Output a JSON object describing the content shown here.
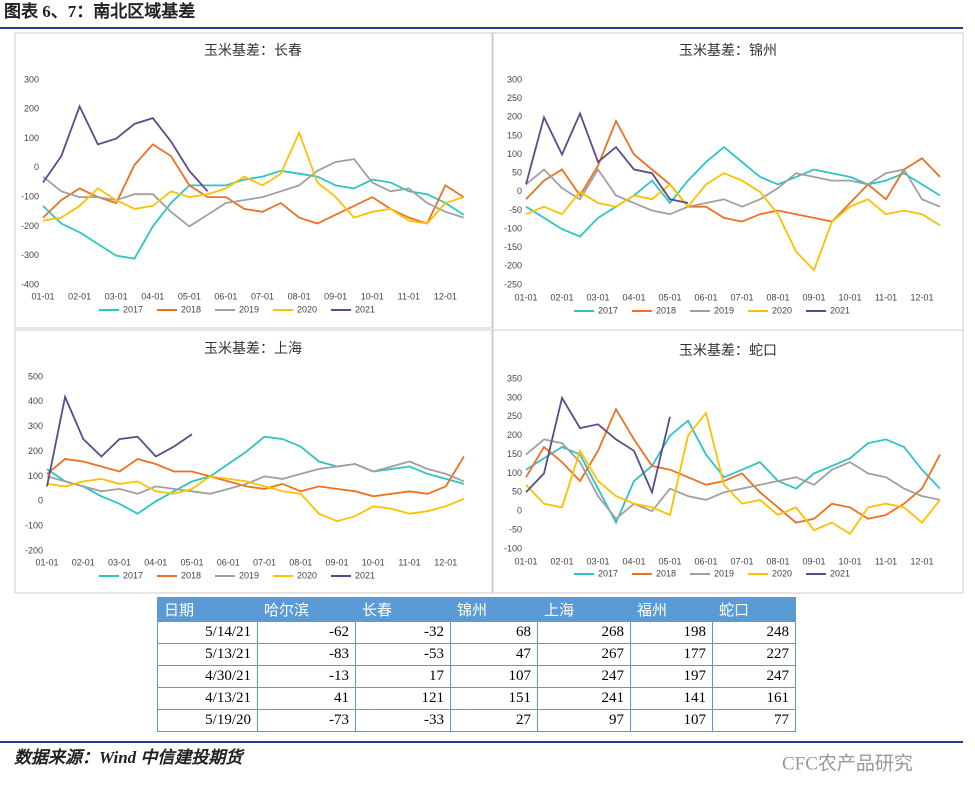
{
  "header": {
    "title": "图表 6、7：南北区域基差"
  },
  "chart_data": [
    {
      "type": "line",
      "title": "玉米基差：长春",
      "categories": [
        "01-01",
        null,
        "02-01",
        null,
        "03-01",
        null,
        "04-01",
        null,
        "05-01",
        null,
        "06-01",
        null,
        "07-01",
        null,
        "08-01",
        null,
        "09-01",
        null,
        "10-01",
        null,
        "11-01",
        null,
        "12-01",
        null
      ],
      "ylim": [
        -400,
        300
      ],
      "yticks": [
        -400,
        -300,
        -200,
        -100,
        0,
        100,
        200,
        300
      ],
      "grid": false,
      "series": [
        {
          "name": "2017",
          "color": "#2ec4c4",
          "values": [
            -130,
            -190,
            -220,
            -260,
            -300,
            -310,
            -200,
            -120,
            -60,
            -60,
            -60,
            -40,
            -30,
            -10,
            -20,
            -30,
            -60,
            -70,
            -40,
            -50,
            -80,
            -90,
            -120,
            -160
          ]
        },
        {
          "name": "2018",
          "color": "#f07020",
          "values": [
            -170,
            -110,
            -70,
            -100,
            -120,
            10,
            80,
            40,
            -60,
            -100,
            -100,
            -140,
            -150,
            -120,
            -170,
            -190,
            -160,
            -130,
            -100,
            -140,
            -170,
            -190,
            -60,
            -100
          ]
        },
        {
          "name": "2019",
          "color": "#a0a0a0",
          "values": [
            -30,
            -80,
            -100,
            -100,
            -110,
            -90,
            -90,
            -150,
            -200,
            -160,
            -120,
            -110,
            -100,
            -80,
            -60,
            -10,
            20,
            30,
            -50,
            -80,
            -70,
            -120,
            -150,
            -170
          ]
        },
        {
          "name": "2020",
          "color": "#ffc000",
          "values": [
            -180,
            -170,
            -130,
            -70,
            -110,
            -140,
            -130,
            -80,
            -100,
            -90,
            -70,
            -30,
            -60,
            -20,
            120,
            -50,
            -100,
            -170,
            -150,
            -140,
            -180,
            -190,
            -120,
            -100
          ]
        },
        {
          "name": "2021",
          "color": "#5b4a8f",
          "values": [
            -50,
            40,
            210,
            80,
            100,
            150,
            170,
            90,
            -10,
            -80,
            null,
            null,
            null,
            null,
            null,
            null,
            null,
            null,
            null,
            null,
            null,
            null,
            null,
            null
          ]
        }
      ]
    },
    {
      "type": "line",
      "title": "玉米基差：锦州",
      "categories": [
        "01-01",
        null,
        "02-01",
        null,
        "03-01",
        null,
        "04-01",
        null,
        "05-01",
        null,
        "06-01",
        null,
        "07-01",
        null,
        "08-01",
        null,
        "09-01",
        null,
        "10-01",
        null,
        "11-01",
        null,
        "12-01",
        null
      ],
      "ylim": [
        -250,
        300
      ],
      "yticks": [
        -250,
        -200,
        -150,
        -100,
        -50,
        0,
        50,
        100,
        150,
        200,
        250,
        300
      ],
      "grid": false,
      "series": [
        {
          "name": "2017",
          "color": "#2ec4c4",
          "values": [
            -40,
            -70,
            -100,
            -120,
            -70,
            -40,
            -10,
            30,
            -30,
            30,
            80,
            120,
            80,
            40,
            20,
            40,
            60,
            50,
            40,
            20,
            30,
            50,
            20,
            -10
          ]
        },
        {
          "name": "2018",
          "color": "#f07020",
          "values": [
            -20,
            30,
            60,
            -10,
            70,
            190,
            100,
            60,
            20,
            -40,
            -40,
            -70,
            -80,
            -60,
            -50,
            -60,
            -70,
            -80,
            -30,
            20,
            -20,
            60,
            90,
            40
          ]
        },
        {
          "name": "2019",
          "color": "#a0a0a0",
          "values": [
            20,
            60,
            10,
            -20,
            60,
            -10,
            -30,
            -50,
            -60,
            -40,
            -30,
            -20,
            -40,
            -20,
            10,
            50,
            40,
            30,
            30,
            20,
            50,
            60,
            -20,
            -40
          ]
        },
        {
          "name": "2020",
          "color": "#ffc000",
          "values": [
            -60,
            -40,
            -60,
            0,
            -30,
            -40,
            -10,
            -20,
            20,
            -40,
            20,
            50,
            30,
            0,
            -60,
            -160,
            -210,
            -80,
            -40,
            -20,
            -60,
            -50,
            -60,
            -90
          ]
        },
        {
          "name": "2021",
          "color": "#5b4a8f",
          "values": [
            20,
            200,
            100,
            210,
            80,
            120,
            60,
            50,
            -20,
            -30,
            null,
            null,
            null,
            null,
            null,
            null,
            null,
            null,
            null,
            null,
            null,
            null,
            null,
            null
          ]
        }
      ]
    },
    {
      "type": "line",
      "title": "玉米基差：上海",
      "categories": [
        "01-01",
        null,
        "02-01",
        null,
        "03-01",
        null,
        "04-01",
        null,
        "05-01",
        null,
        "06-01",
        null,
        "07-01",
        null,
        "08-01",
        null,
        "09-01",
        null,
        "10-01",
        null,
        "11-01",
        null,
        "12-01",
        null
      ],
      "ylim": [
        -200,
        500
      ],
      "yticks": [
        -200,
        -100,
        0,
        100,
        200,
        300,
        400,
        500
      ],
      "grid": false,
      "series": [
        {
          "name": "2017",
          "color": "#2ec4c4",
          "values": [
            130,
            80,
            60,
            20,
            -10,
            -50,
            0,
            40,
            80,
            100,
            150,
            200,
            260,
            250,
            220,
            160,
            140,
            150,
            120,
            130,
            140,
            110,
            90,
            70
          ]
        },
        {
          "name": "2018",
          "color": "#f07020",
          "values": [
            110,
            170,
            160,
            140,
            120,
            170,
            150,
            120,
            120,
            100,
            80,
            60,
            50,
            70,
            40,
            60,
            50,
            40,
            20,
            30,
            40,
            30,
            60,
            180
          ]
        },
        {
          "name": "2019",
          "color": "#a0a0a0",
          "values": [
            100,
            80,
            60,
            40,
            50,
            30,
            60,
            50,
            40,
            30,
            50,
            70,
            100,
            90,
            110,
            130,
            140,
            150,
            120,
            140,
            160,
            130,
            110,
            80
          ]
        },
        {
          "name": "2020",
          "color": "#ffc000",
          "values": [
            70,
            60,
            80,
            90,
            70,
            80,
            40,
            30,
            50,
            100,
            90,
            80,
            60,
            40,
            30,
            -50,
            -80,
            -60,
            -20,
            -30,
            -50,
            -40,
            -20,
            10
          ]
        },
        {
          "name": "2021",
          "color": "#5b4a8f",
          "values": [
            60,
            420,
            250,
            180,
            250,
            260,
            180,
            220,
            270,
            null,
            null,
            null,
            null,
            null,
            null,
            null,
            null,
            null,
            null,
            null,
            null,
            null,
            null,
            null
          ]
        }
      ]
    },
    {
      "type": "line",
      "title": "玉米基差：蛇口",
      "categories": [
        "01-01",
        null,
        "02-01",
        null,
        "03-01",
        null,
        "04-01",
        null,
        "05-01",
        null,
        "06-01",
        null,
        "07-01",
        null,
        "08-01",
        null,
        "09-01",
        null,
        "10-01",
        null,
        "11-01",
        null,
        "12-01",
        null
      ],
      "ylim": [
        -100,
        350
      ],
      "yticks": [
        -100,
        -50,
        0,
        50,
        100,
        150,
        200,
        250,
        300,
        350
      ],
      "grid": false,
      "series": [
        {
          "name": "2017",
          "color": "#2ec4c4",
          "values": [
            110,
            140,
            170,
            150,
            60,
            -30,
            80,
            120,
            200,
            240,
            150,
            90,
            110,
            130,
            80,
            60,
            100,
            120,
            140,
            180,
            190,
            170,
            110,
            60
          ]
        },
        {
          "name": "2018",
          "color": "#f07020",
          "values": [
            90,
            170,
            130,
            80,
            160,
            270,
            190,
            120,
            110,
            90,
            70,
            80,
            100,
            50,
            10,
            -30,
            -20,
            20,
            10,
            -20,
            -10,
            20,
            60,
            150
          ]
        },
        {
          "name": "2019",
          "color": "#a0a0a0",
          "values": [
            150,
            190,
            180,
            130,
            40,
            -20,
            20,
            0,
            60,
            40,
            30,
            50,
            60,
            70,
            80,
            90,
            70,
            110,
            130,
            100,
            90,
            60,
            40,
            30
          ]
        },
        {
          "name": "2020",
          "color": "#ffc000",
          "values": [
            70,
            20,
            10,
            160,
            80,
            40,
            20,
            10,
            -10,
            200,
            260,
            70,
            20,
            30,
            -10,
            10,
            -50,
            -30,
            -60,
            10,
            20,
            10,
            -30,
            30
          ]
        },
        {
          "name": "2021",
          "color": "#5b4a8f",
          "values": [
            50,
            100,
            300,
            220,
            230,
            190,
            160,
            50,
            250,
            null,
            null,
            null,
            null,
            null,
            null,
            null,
            null,
            null,
            null,
            null,
            null,
            null,
            null,
            null
          ]
        }
      ]
    }
  ],
  "table": {
    "columns": [
      "日期",
      "哈尔滨",
      "长春",
      "锦州",
      "上海",
      "福州",
      "蛇口"
    ],
    "rows": [
      [
        "5/14/21",
        "-62",
        "-32",
        "68",
        "268",
        "198",
        "248"
      ],
      [
        "5/13/21",
        "-83",
        "-53",
        "47",
        "267",
        "177",
        "227"
      ],
      [
        "4/30/21",
        "-13",
        "17",
        "107",
        "247",
        "197",
        "247"
      ],
      [
        "4/13/21",
        "41",
        "121",
        "151",
        "241",
        "141",
        "161"
      ],
      [
        "5/19/20",
        "-73",
        "-33",
        "27",
        "97",
        "107",
        "77"
      ]
    ]
  },
  "footer": {
    "source": "数据来源：Wind 中信建投期货",
    "watermark": "CFC农产品研究"
  }
}
